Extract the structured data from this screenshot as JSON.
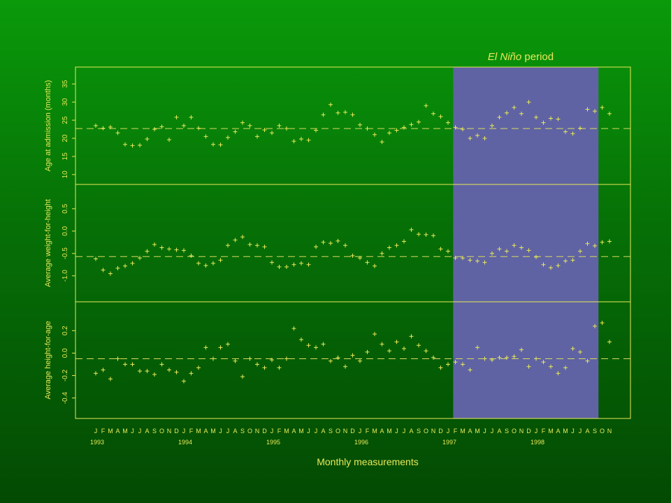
{
  "chart_data": {
    "type": "scatter",
    "highlight": {
      "label_italic": "El Niño",
      "label_rest": " period",
      "x_start": 48.7,
      "x_end": 68.5,
      "color": "#5f63a3"
    },
    "colors": {
      "points": "#e8e85a",
      "frame": "#e8e85a",
      "reference_line": "#d8d860"
    },
    "xlabel": "Monthly measurements",
    "month_labels": [
      "J",
      "F",
      "M",
      "A",
      "M",
      "J",
      "J",
      "A",
      "S",
      "O",
      "N",
      "D",
      "J",
      "F",
      "M",
      "A",
      "M",
      "J",
      "J",
      "A",
      "S",
      "O",
      "N",
      "D",
      "J",
      "F",
      "M",
      "A",
      "M",
      "J",
      "J",
      "A",
      "S",
      "O",
      "N",
      "D",
      "J",
      "F",
      "M",
      "A",
      "M",
      "J",
      "J",
      "A",
      "S",
      "O",
      "N",
      "D",
      "J",
      "F",
      "M",
      "A",
      "M",
      "J",
      "J",
      "A",
      "S",
      "O",
      "N",
      "D",
      "J",
      "F",
      "M",
      "A",
      "M",
      "J",
      "J",
      "A",
      "S",
      "O",
      "N"
    ],
    "year_labels": [
      {
        "label": "1993",
        "month_index": 0
      },
      {
        "label": "1994",
        "month_index": 12
      },
      {
        "label": "1995",
        "month_index": 24
      },
      {
        "label": "1996",
        "month_index": 36
      },
      {
        "label": "1997",
        "month_index": 48
      },
      {
        "label": "1998",
        "month_index": 60
      }
    ],
    "panels": [
      {
        "ylabel": "Age at admission (months)",
        "yticks": [
          "10",
          "15",
          "20",
          "25",
          "30",
          "35"
        ],
        "ylim": [
          6.5,
          38.5
        ],
        "reference": 22.7,
        "values": [
          23.5,
          22.8,
          23.1,
          21.5,
          18.3,
          18.0,
          18.1,
          19.8,
          22.5,
          23.2,
          19.6,
          25.8,
          23.5,
          25.8,
          22.8,
          20.5,
          18.3,
          18.2,
          20.2,
          21.8,
          24.3,
          23.5,
          20.5,
          22.3,
          21.5,
          23.5,
          22.7,
          19.2,
          19.8,
          19.5,
          22.2,
          26.5,
          29.3,
          27.0,
          27.2,
          26.5,
          23.7,
          22.7,
          21.0,
          19.0,
          21.5,
          22.2,
          23.0,
          23.8,
          24.5,
          29.0,
          26.8,
          26.0,
          24.3,
          23.0,
          22.5,
          20.0,
          20.8,
          20.0,
          23.5,
          25.8,
          27.0,
          28.5,
          26.8,
          30.0,
          25.8,
          24.3,
          25.5,
          25.3,
          21.8,
          21.3,
          22.8,
          28.0,
          27.5,
          28.5,
          26.8
        ]
      },
      {
        "ylabel": "Average weight-for-height",
        "yticks": [
          "-1.0",
          "-0.5",
          "0.0",
          "0.5"
        ],
        "ylim": [
          -1.55,
          0.95
        ],
        "reference": -0.57,
        "values": [
          -0.62,
          -0.87,
          -0.95,
          -0.83,
          -0.78,
          -0.72,
          -0.6,
          -0.45,
          -0.3,
          -0.37,
          -0.4,
          -0.42,
          -0.43,
          -0.55,
          -0.72,
          -0.77,
          -0.72,
          -0.65,
          -0.32,
          -0.2,
          -0.13,
          -0.3,
          -0.32,
          -0.35,
          -0.7,
          -0.8,
          -0.8,
          -0.75,
          -0.72,
          -0.75,
          -0.35,
          -0.25,
          -0.27,
          -0.22,
          -0.32,
          -0.55,
          -0.6,
          -0.7,
          -0.78,
          -0.5,
          -0.37,
          -0.32,
          -0.23,
          0.03,
          -0.07,
          -0.08,
          -0.1,
          -0.4,
          -0.45,
          -0.6,
          -0.6,
          -0.65,
          -0.67,
          -0.7,
          -0.5,
          -0.4,
          -0.45,
          -0.32,
          -0.37,
          -0.43,
          -0.58,
          -0.75,
          -0.82,
          -0.77,
          -0.67,
          -0.65,
          -0.45,
          -0.28,
          -0.33,
          -0.25,
          -0.23
        ]
      },
      {
        "ylabel": "Average height-for-age",
        "yticks": [
          "-0.4",
          "-0.2",
          "0.0",
          "0.2"
        ],
        "ylim": [
          -0.57,
          0.42
        ],
        "reference": -0.05,
        "values": [
          -0.18,
          -0.15,
          -0.23,
          -0.05,
          -0.1,
          -0.1,
          -0.16,
          -0.16,
          -0.19,
          -0.1,
          -0.15,
          -0.17,
          -0.25,
          -0.18,
          -0.13,
          0.05,
          -0.05,
          0.05,
          0.08,
          -0.07,
          -0.21,
          -0.05,
          -0.1,
          -0.13,
          -0.06,
          -0.13,
          -0.05,
          0.22,
          0.12,
          0.07,
          0.05,
          0.08,
          -0.07,
          -0.04,
          -0.12,
          -0.02,
          -0.07,
          0.01,
          0.17,
          0.08,
          0.02,
          0.1,
          0.04,
          0.15,
          0.07,
          0.02,
          -0.04,
          -0.13,
          -0.1,
          -0.08,
          -0.1,
          -0.15,
          0.05,
          -0.05,
          -0.06,
          -0.04,
          -0.04,
          -0.03,
          0.03,
          -0.12,
          -0.05,
          -0.08,
          -0.12,
          -0.18,
          -0.13,
          0.04,
          0.01,
          -0.07,
          0.24,
          0.27,
          0.1
        ]
      }
    ]
  }
}
